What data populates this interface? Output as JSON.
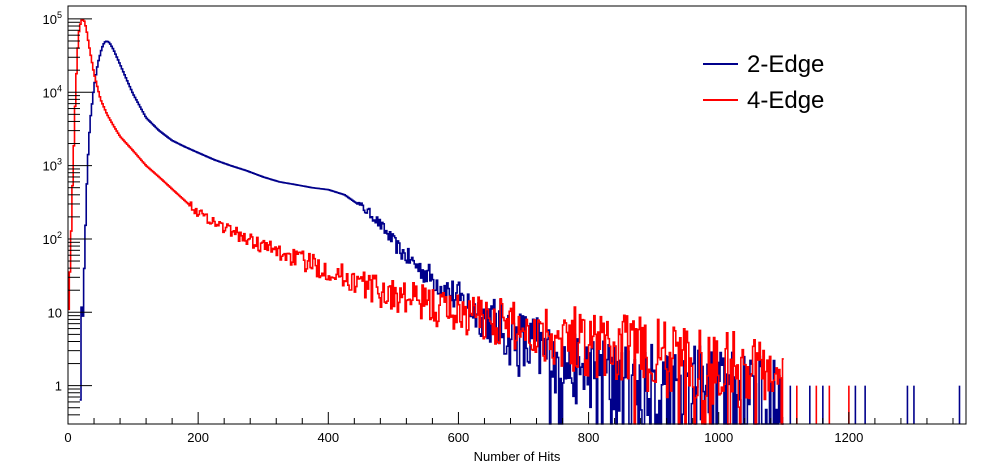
{
  "chart_data": {
    "type": "line",
    "title": "",
    "xlabel": "Number of Hits",
    "ylabel": "",
    "xlim": [
      0,
      1380
    ],
    "ylim": [
      0.3,
      150000
    ],
    "y_scale": "log",
    "grid": false,
    "legend_position": "top-right",
    "x_ticks": [
      0,
      200,
      400,
      600,
      800,
      1000,
      1200
    ],
    "x_tick_labels": [
      "0",
      "200",
      "400",
      "600",
      "800",
      "1000",
      "1200"
    ],
    "y_ticks": [
      1,
      10,
      100,
      1000,
      10000,
      100000
    ],
    "y_tick_labels": [
      {
        "base": "1",
        "exp": ""
      },
      {
        "base": "10",
        "exp": ""
      },
      {
        "base": "10",
        "exp": "2"
      },
      {
        "base": "10",
        "exp": "3"
      },
      {
        "base": "10",
        "exp": "4"
      },
      {
        "base": "10",
        "exp": "5"
      }
    ],
    "series": [
      {
        "name": "2-Edge",
        "color": "#00008b",
        "points": [
          [
            18,
            1
          ],
          [
            22,
            8
          ],
          [
            26,
            100
          ],
          [
            30,
            1000
          ],
          [
            34,
            4000
          ],
          [
            40,
            12000
          ],
          [
            46,
            25000
          ],
          [
            52,
            40000
          ],
          [
            56,
            48000
          ],
          [
            60,
            50000
          ],
          [
            64,
            47000
          ],
          [
            70,
            38000
          ],
          [
            80,
            24000
          ],
          [
            90,
            15000
          ],
          [
            100,
            9500
          ],
          [
            120,
            4500
          ],
          [
            140,
            3000
          ],
          [
            160,
            2200
          ],
          [
            180,
            1800
          ],
          [
            200,
            1500
          ],
          [
            225,
            1200
          ],
          [
            250,
            1000
          ],
          [
            275,
            850
          ],
          [
            300,
            700
          ],
          [
            325,
            600
          ],
          [
            350,
            550
          ],
          [
            375,
            500
          ],
          [
            400,
            470
          ],
          [
            425,
            400
          ],
          [
            450,
            280
          ],
          [
            470,
            200
          ],
          [
            490,
            120
          ],
          [
            510,
            70
          ],
          [
            540,
            40
          ],
          [
            570,
            25
          ],
          [
            600,
            15
          ],
          [
            630,
            10
          ],
          [
            660,
            7
          ],
          [
            690,
            4
          ],
          [
            720,
            3
          ],
          [
            760,
            2
          ],
          [
            800,
            1.6
          ],
          [
            850,
            1.3
          ],
          [
            900,
            1.2
          ],
          [
            950,
            1.1
          ],
          [
            1000,
            1
          ],
          [
            1050,
            0.8
          ],
          [
            1100,
            0.7
          ]
        ],
        "sparse_points": [
          [
            1110,
            1
          ],
          [
            1140,
            1
          ],
          [
            1160,
            1
          ],
          [
            1210,
            1
          ],
          [
            1225,
            1
          ],
          [
            1290,
            1
          ],
          [
            1300,
            1
          ],
          [
            1370,
            1
          ]
        ]
      },
      {
        "name": "4-Edge",
        "color": "#ff0000",
        "points": [
          [
            0,
            10
          ],
          [
            4,
            80
          ],
          [
            8,
            1000
          ],
          [
            12,
            12000
          ],
          [
            16,
            60000
          ],
          [
            20,
            95000
          ],
          [
            24,
            100000
          ],
          [
            28,
            75000
          ],
          [
            32,
            45000
          ],
          [
            40,
            18000
          ],
          [
            50,
            8000
          ],
          [
            60,
            5000
          ],
          [
            70,
            3500
          ],
          [
            80,
            2500
          ],
          [
            100,
            1600
          ],
          [
            120,
            1000
          ],
          [
            140,
            700
          ],
          [
            160,
            480
          ],
          [
            180,
            330
          ],
          [
            200,
            230
          ],
          [
            225,
            170
          ],
          [
            250,
            130
          ],
          [
            275,
            100
          ],
          [
            300,
            80
          ],
          [
            325,
            65
          ],
          [
            350,
            55
          ],
          [
            375,
            45
          ],
          [
            400,
            38
          ],
          [
            425,
            30
          ],
          [
            450,
            25
          ],
          [
            475,
            20
          ],
          [
            500,
            17
          ],
          [
            525,
            15
          ],
          [
            550,
            13
          ],
          [
            575,
            11
          ],
          [
            600,
            10
          ],
          [
            650,
            8
          ],
          [
            700,
            6
          ],
          [
            750,
            5
          ],
          [
            800,
            4
          ],
          [
            850,
            3
          ],
          [
            900,
            2.5
          ],
          [
            950,
            2
          ],
          [
            1000,
            1.8
          ],
          [
            1050,
            1.6
          ],
          [
            1100,
            1.5
          ]
        ],
        "sparse_points": [
          [
            1120,
            1
          ],
          [
            1150,
            1
          ],
          [
            1170,
            1
          ],
          [
            1200,
            1
          ]
        ]
      }
    ]
  }
}
